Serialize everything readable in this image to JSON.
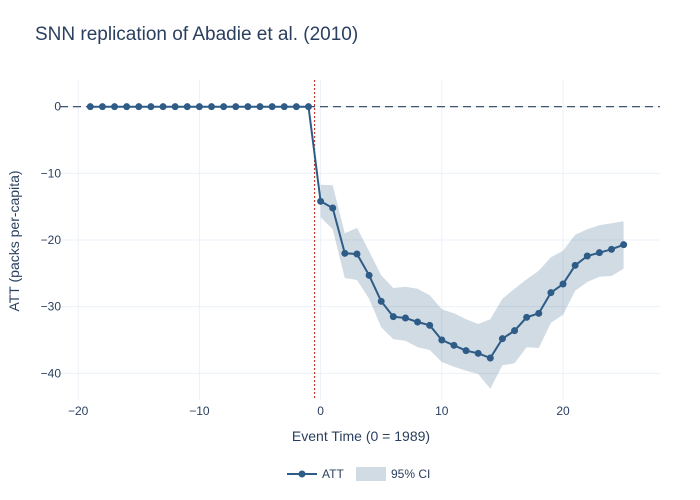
{
  "chart_data": {
    "type": "line",
    "title": "SNN replication of Abadie et al. (2010)",
    "xlabel": "Event Time (0 = 1989)",
    "ylabel": "ATT (packs per-capita)",
    "xlim": [
      -21.5,
      28
    ],
    "ylim": [
      -44,
      4
    ],
    "x_ticks": [
      -20,
      -10,
      0,
      10,
      20
    ],
    "x_tick_labels": [
      "−20",
      "−10",
      "0",
      "10",
      "20"
    ],
    "y_ticks": [
      0,
      -10,
      -20,
      -30,
      -40
    ],
    "y_tick_labels": [
      "0",
      "−10",
      "−20",
      "−30",
      "−40"
    ],
    "grid": true,
    "legend_position": "bottom-center",
    "reference_lines": [
      {
        "orientation": "horizontal",
        "value": 0,
        "style": "dashed",
        "color": "#2a3f5f"
      },
      {
        "orientation": "vertical",
        "value": -0.5,
        "style": "dotted",
        "color": "#c0392b"
      }
    ],
    "series": [
      {
        "name": "ATT",
        "kind": "line+markers",
        "color": "#2e5c86",
        "x": [
          -19,
          -18,
          -17,
          -16,
          -15,
          -14,
          -13,
          -12,
          -11,
          -10,
          -9,
          -8,
          -7,
          -6,
          -5,
          -4,
          -3,
          -2,
          -1,
          0,
          1,
          2,
          3,
          4,
          5,
          6,
          7,
          8,
          9,
          10,
          11,
          12,
          13,
          14,
          15,
          16,
          17,
          18,
          19,
          20,
          21,
          22,
          23,
          24,
          25
        ],
        "y": [
          0,
          0,
          0,
          0,
          0,
          0,
          0,
          0,
          0,
          0,
          0,
          0,
          0,
          0,
          0,
          0,
          0,
          0,
          0,
          -14.2,
          -15.2,
          -22.0,
          -22.1,
          -25.3,
          -29.2,
          -31.5,
          -31.7,
          -32.3,
          -32.8,
          -35.0,
          -35.8,
          -36.6,
          -37.0,
          -37.7,
          -34.8,
          -33.6,
          -31.6,
          -31.0,
          -27.9,
          -26.6,
          -23.8,
          -22.4,
          -21.9,
          -21.4,
          -20.7
        ]
      },
      {
        "name": "95% CI",
        "kind": "band",
        "color": "#2e5c86",
        "opacity": 0.22,
        "x": [
          0,
          1,
          2,
          3,
          4,
          5,
          6,
          7,
          8,
          9,
          10,
          11,
          12,
          13,
          14,
          15,
          16,
          17,
          18,
          19,
          20,
          21,
          22,
          23,
          24,
          25
        ],
        "upper": [
          -11.7,
          -11.8,
          -19.0,
          -18.2,
          -21.7,
          -25.3,
          -27.2,
          -27.0,
          -27.3,
          -28.3,
          -30.4,
          -31.0,
          -31.9,
          -32.6,
          -31.9,
          -28.8,
          -27.3,
          -25.9,
          -24.6,
          -22.6,
          -21.6,
          -19.2,
          -18.4,
          -17.8,
          -17.5,
          -17.2
        ],
        "lower": [
          -16.6,
          -18.4,
          -25.7,
          -26.0,
          -28.8,
          -33.1,
          -34.9,
          -35.1,
          -36.1,
          -36.5,
          -38.3,
          -39.0,
          -39.6,
          -40.1,
          -42.3,
          -38.8,
          -38.5,
          -36.1,
          -36.2,
          -32.4,
          -31.2,
          -27.6,
          -26.3,
          -25.5,
          -25.4,
          -24.3
        ]
      }
    ]
  }
}
